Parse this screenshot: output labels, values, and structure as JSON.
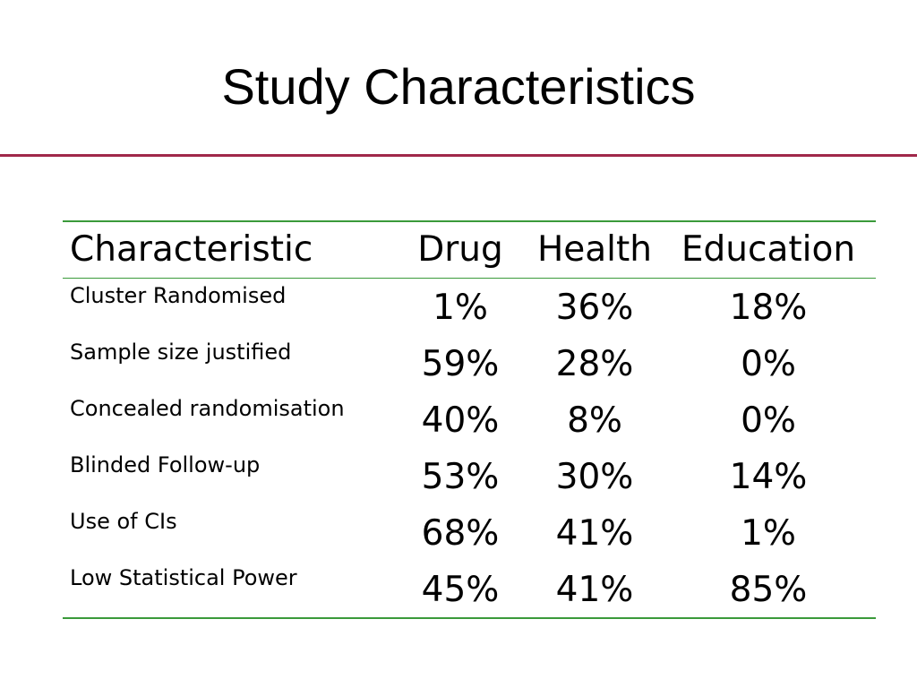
{
  "slide": {
    "title": "Study Characteristics",
    "colors": {
      "title_rule": "#a0284a",
      "table_rules": "#3a9a3a"
    }
  },
  "table": {
    "headers": [
      "Characteristic",
      "Drug",
      "Health",
      "Education"
    ],
    "rows": [
      {
        "label": "Cluster  Randomised",
        "values": [
          "1%",
          "36%",
          "18%"
        ]
      },
      {
        "label": "Sample size justified",
        "values": [
          "59%",
          "28%",
          "0%"
        ]
      },
      {
        "label": "Concealed randomisation",
        "values": [
          "40%",
          "8%",
          "0%"
        ]
      },
      {
        "label": "Blinded Follow-up",
        "values": [
          "53%",
          "30%",
          "14%"
        ]
      },
      {
        "label": "Use of CIs",
        "values": [
          "68%",
          "41%",
          "1%"
        ]
      },
      {
        "label": "Low Statistical Power",
        "values": [
          "45%",
          "41%",
          "85%"
        ]
      }
    ]
  }
}
